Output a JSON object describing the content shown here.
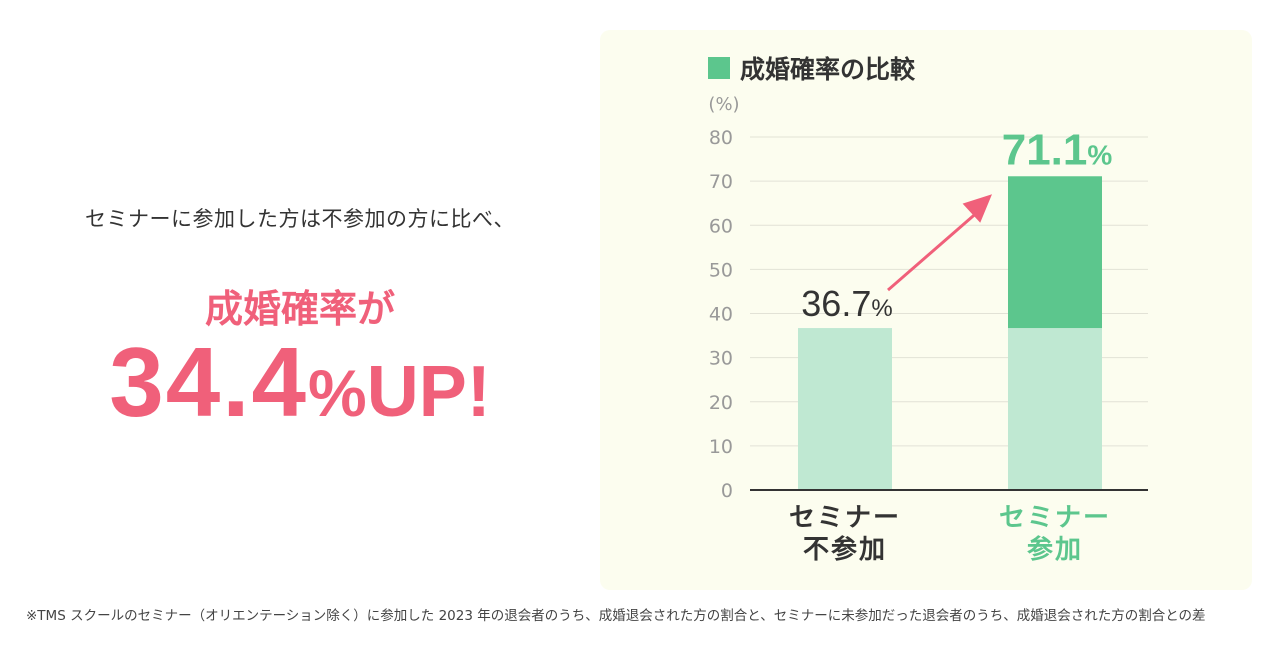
{
  "left": {
    "lead": "セミナーに参加した方は不参加の方に比べ、",
    "headline": "成婚確率が",
    "big_number": "34.4",
    "big_percent": "%",
    "big_suffix": "UP!"
  },
  "legend": {
    "label": "成婚確率の比較"
  },
  "colors": {
    "accent_pink": "#f0607a",
    "green": "#5cc68d",
    "light_green": "#bfe8d2",
    "panel_bg": "#fcfdef"
  },
  "chart_data": {
    "type": "bar",
    "title": "成婚確率の比較",
    "ylabel": "(%)",
    "ylim": [
      0,
      80
    ],
    "yticks": [
      "0",
      "10",
      "20",
      "30",
      "40",
      "50",
      "60",
      "70",
      "80"
    ],
    "grid": true,
    "categories": [
      "セミナー\n不参加",
      "セミナー\n参加"
    ],
    "values": [
      36.7,
      71.1
    ],
    "value_labels": [
      "36.7",
      "71.1"
    ],
    "value_unit": "%",
    "annotation": "arrow from 36.7% bar to 71.1% bar"
  },
  "footnote": "※TMS スクールのセミナー（オリエンテーション除く）に参加した 2023 年の退会者のうち、成婚退会された方の割合と、セミナーに未参加だった退会者のうち、成婚退会された方の割合との差"
}
